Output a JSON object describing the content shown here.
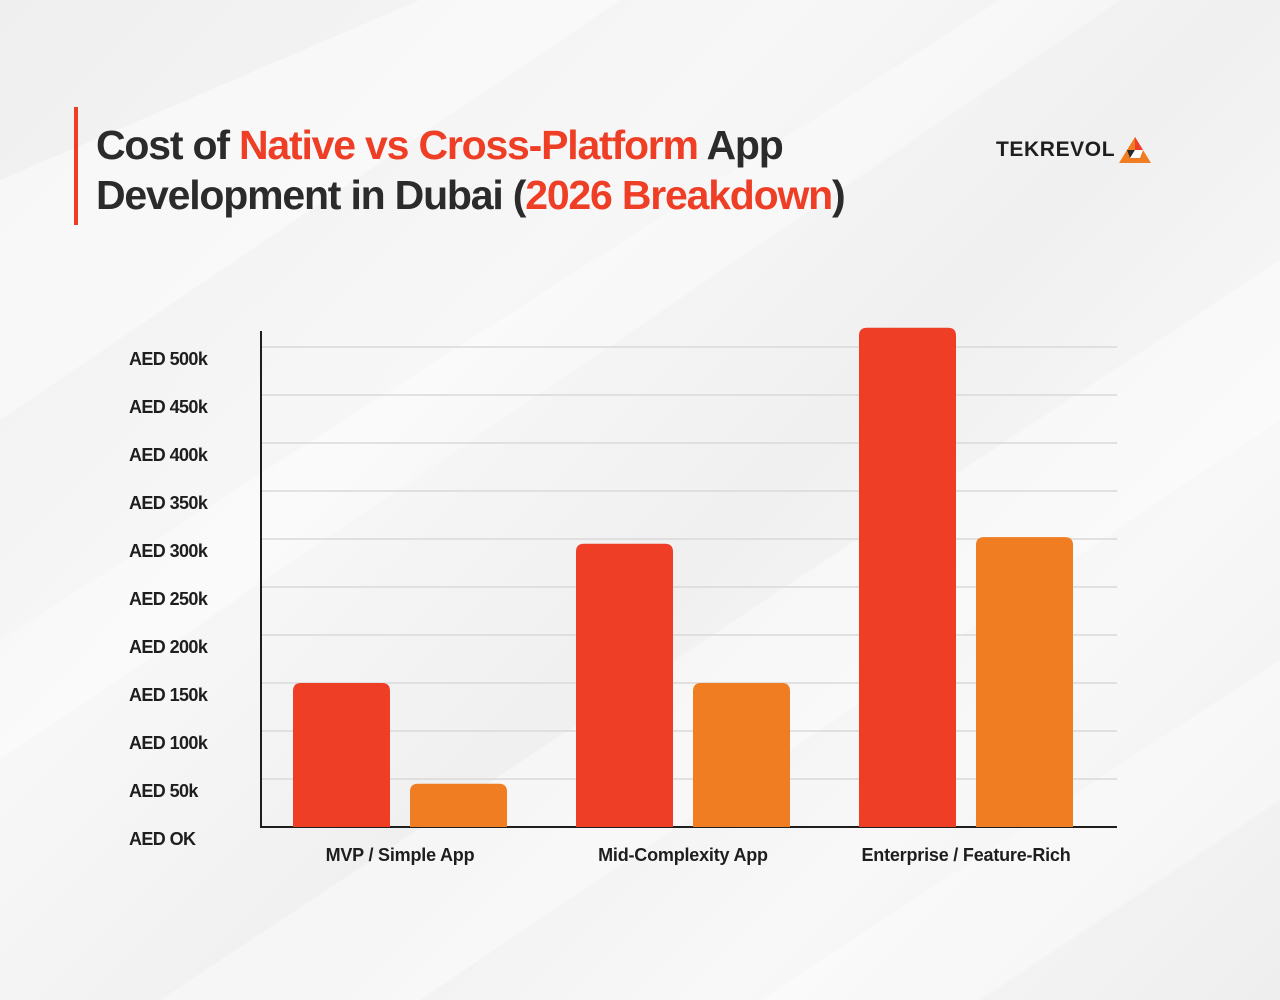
{
  "header": {
    "title_parts": [
      {
        "text": "Cost of ",
        "highlight": false
      },
      {
        "text": "Native vs Cross-Platform",
        "highlight": true
      },
      {
        "text": " App Development in Dubai (",
        "highlight": false
      },
      {
        "text": "2026 Breakdown",
        "highlight": true
      },
      {
        "text": ")",
        "highlight": false
      }
    ]
  },
  "logo": {
    "text": "TEKREVOL",
    "mark_icon": "triangle-logo-icon"
  },
  "colors": {
    "accent": "#ef3e26",
    "native": "#ef3e26",
    "cross_platform": "#f07d22",
    "text": "#2b2b2b",
    "grid": "#d9d9d9",
    "axis": "#1e1e1e"
  },
  "chart_data": {
    "type": "bar",
    "categories": [
      "MVP / Simple App",
      "Mid-Complexity App",
      "Enterprise / Feature-Rich"
    ],
    "series": [
      {
        "values": [
          150000,
          295000,
          520000
        ]
      },
      {
        "values": [
          45000,
          150000,
          302000
        ]
      }
    ],
    "yticks": [
      {
        "value": 0,
        "label": "AED OK"
      },
      {
        "value": 50000,
        "label": "AED 50k"
      },
      {
        "value": 100000,
        "label": "AED 100k"
      },
      {
        "value": 150000,
        "label": "AED 150k"
      },
      {
        "value": 200000,
        "label": "AED 200k"
      },
      {
        "value": 250000,
        "label": "AED 250k"
      },
      {
        "value": 300000,
        "label": "AED 300k"
      },
      {
        "value": 350000,
        "label": "AED 350k"
      },
      {
        "value": 400000,
        "label": "AED 400k"
      },
      {
        "value": 450000,
        "label": "AED 450k"
      },
      {
        "value": 500000,
        "label": "AED 500k"
      }
    ],
    "title": "",
    "xlabel": "",
    "ylabel": "",
    "ylim": [
      0,
      520000
    ],
    "grid": true,
    "legend": "none"
  }
}
